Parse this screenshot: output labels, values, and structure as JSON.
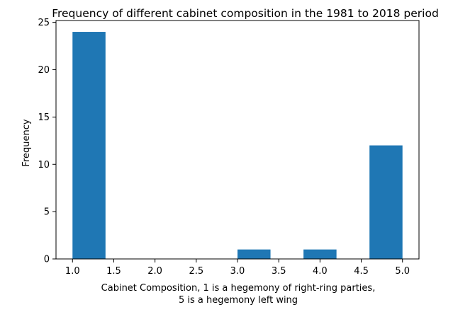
{
  "chart_data": {
    "type": "bar",
    "subtype": "histogram",
    "title": "Frequency of different cabinet composition in the 1981 to 2018 period",
    "xlabel_lines": [
      "Cabinet Composition, 1 is a hegemony of right-ring parties,",
      "5 is a hegemony left wing"
    ],
    "ylabel": "Frequency",
    "bins": [
      {
        "start": 1.0,
        "end": 1.4,
        "count": 24
      },
      {
        "start": 1.4,
        "end": 1.8,
        "count": 0
      },
      {
        "start": 1.8,
        "end": 2.2,
        "count": 0
      },
      {
        "start": 2.2,
        "end": 2.6,
        "count": 0
      },
      {
        "start": 2.6,
        "end": 3.0,
        "count": 0
      },
      {
        "start": 3.0,
        "end": 3.4,
        "count": 1
      },
      {
        "start": 3.4,
        "end": 3.8,
        "count": 0
      },
      {
        "start": 3.8,
        "end": 4.2,
        "count": 1
      },
      {
        "start": 4.2,
        "end": 4.6,
        "count": 0
      },
      {
        "start": 4.6,
        "end": 5.0,
        "count": 12
      }
    ],
    "xlim": [
      0.8,
      5.2
    ],
    "ylim": [
      0,
      25.2
    ],
    "xticks": [
      1.0,
      1.5,
      2.0,
      2.5,
      3.0,
      3.5,
      4.0,
      4.5,
      5.0
    ],
    "xtick_labels": [
      "1.0",
      "1.5",
      "2.0",
      "2.5",
      "3.0",
      "3.5",
      "4.0",
      "4.5",
      "5.0"
    ],
    "yticks": [
      0,
      5,
      10,
      15,
      20,
      25
    ],
    "ytick_labels": [
      "0",
      "5",
      "10",
      "15",
      "20",
      "25"
    ],
    "bar_color": "#1f77b4",
    "grid": false,
    "legend": "none"
  }
}
